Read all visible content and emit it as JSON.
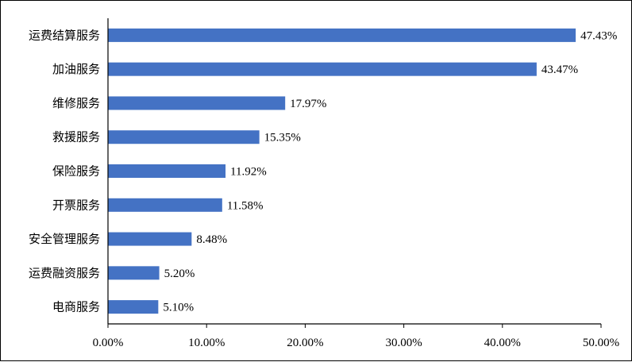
{
  "chart_data": {
    "type": "bar",
    "orientation": "horizontal",
    "categories": [
      "运费结算服务",
      "加油服务",
      "维修服务",
      "救援服务",
      "保险服务",
      "开票服务",
      "安全管理服务",
      "运费融资服务",
      "电商服务"
    ],
    "values": [
      47.43,
      43.47,
      17.97,
      15.35,
      11.92,
      11.58,
      8.48,
      5.2,
      5.1
    ],
    "value_labels": [
      "47.43%",
      "43.47%",
      "17.97%",
      "15.35%",
      "11.92%",
      "11.58%",
      "8.48%",
      "5.20%",
      "5.10%"
    ],
    "x_ticks": [
      0,
      10,
      20,
      30,
      40,
      50
    ],
    "x_tick_labels": [
      "0.00%",
      "10.00%",
      "20.00%",
      "30.00%",
      "40.00%",
      "50.00%"
    ],
    "xlim": [
      0,
      50
    ],
    "title": "",
    "xlabel": "",
    "ylabel": "",
    "grid": false,
    "legend": "none",
    "bar_color": "#4472C4"
  }
}
